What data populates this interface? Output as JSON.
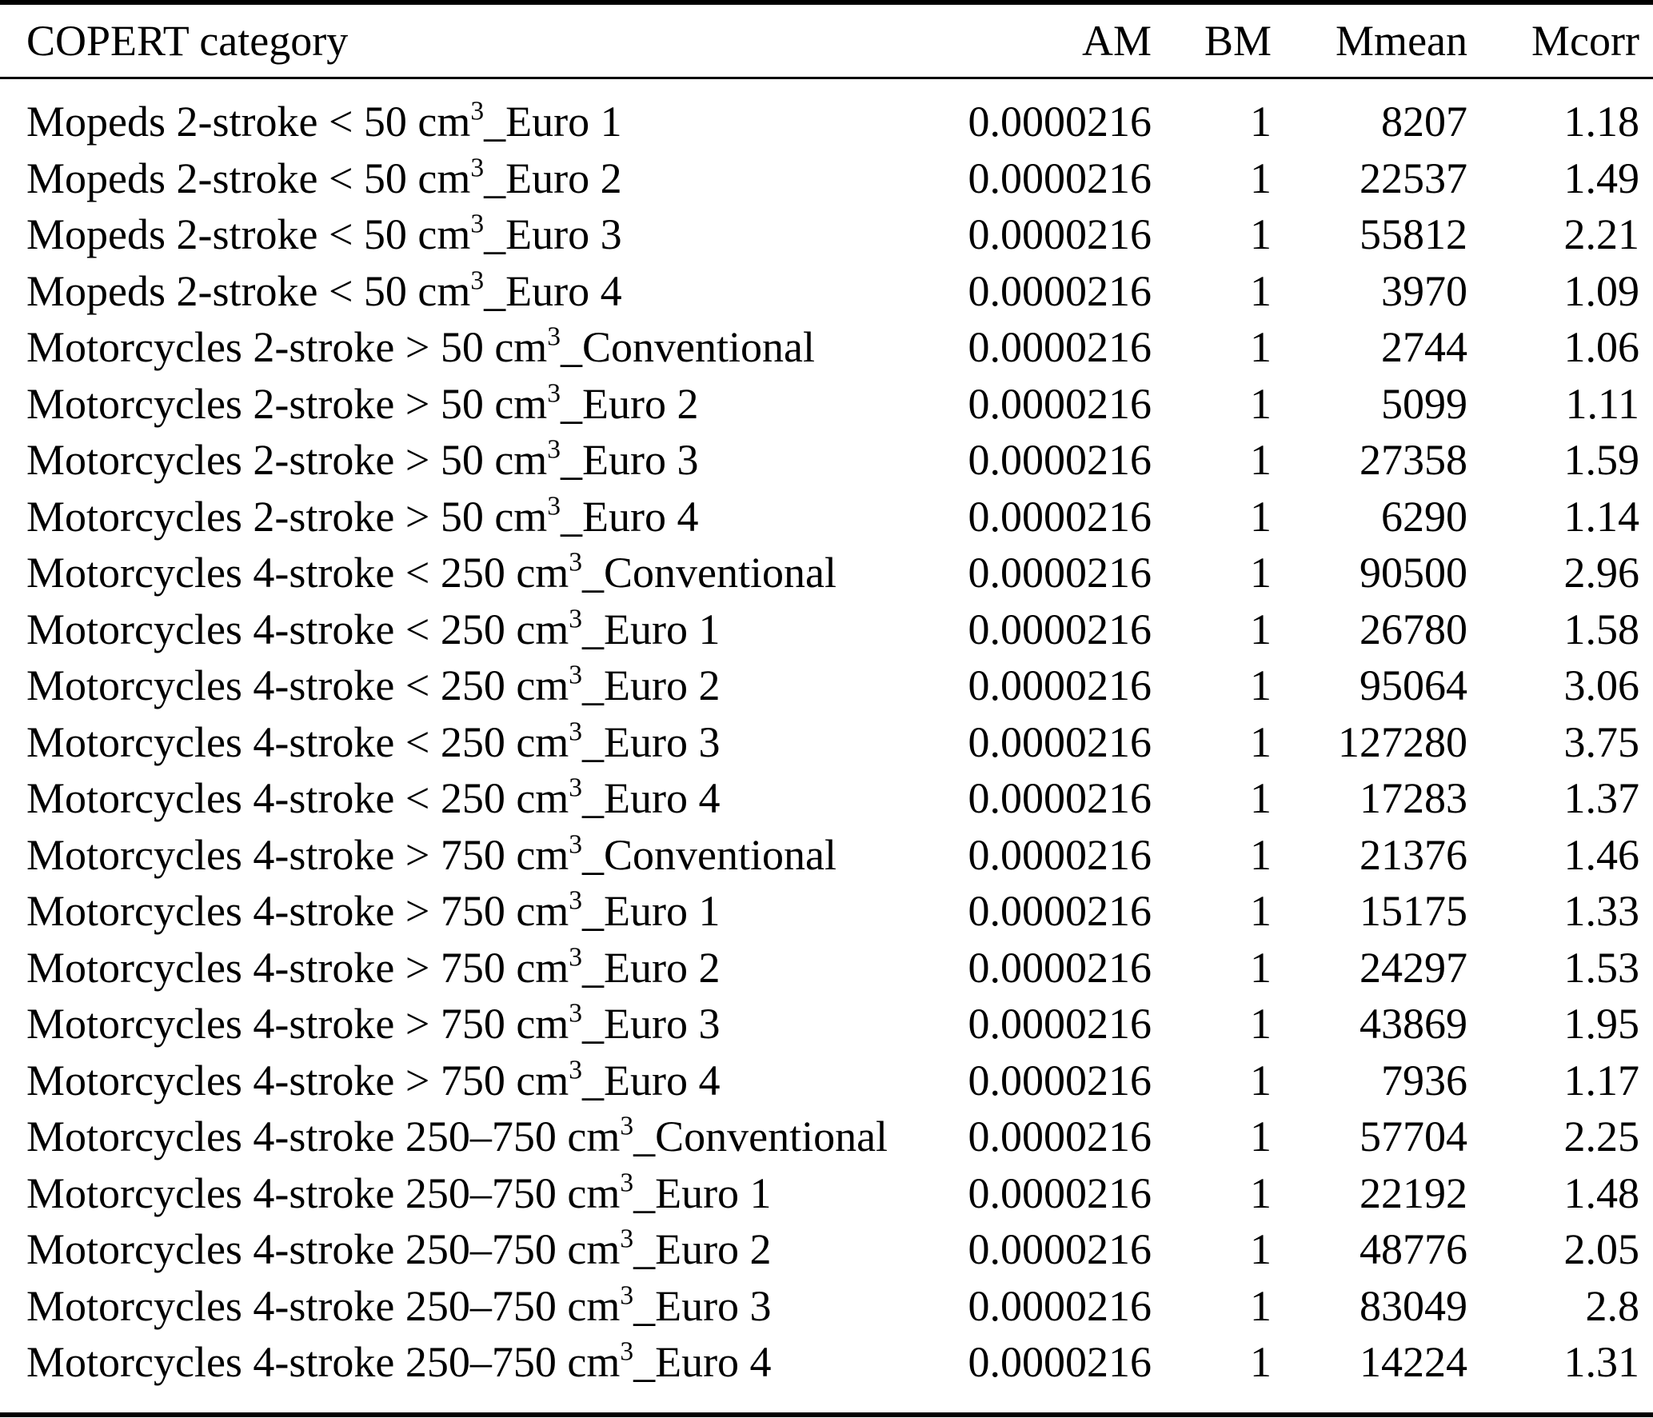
{
  "table": {
    "columns": {
      "category": "COPERT category",
      "am": "AM",
      "bm": "BM",
      "mmean": "Mmean",
      "mcorr": "Mcorr"
    },
    "rows": [
      {
        "pre": "Mopeds 2-stroke < 50 cm",
        "sup": "3",
        "post": "_Euro 1",
        "am": "0.0000216",
        "bm": "1",
        "mmean": "8207",
        "mcorr": "1.18"
      },
      {
        "pre": "Mopeds 2-stroke < 50 cm",
        "sup": "3",
        "post": "_Euro 2",
        "am": "0.0000216",
        "bm": "1",
        "mmean": "22537",
        "mcorr": "1.49"
      },
      {
        "pre": "Mopeds 2-stroke < 50 cm",
        "sup": "3",
        "post": "_Euro 3",
        "am": "0.0000216",
        "bm": "1",
        "mmean": "55812",
        "mcorr": "2.21"
      },
      {
        "pre": "Mopeds 2-stroke < 50 cm",
        "sup": "3",
        "post": "_Euro 4",
        "am": "0.0000216",
        "bm": "1",
        "mmean": "3970",
        "mcorr": "1.09"
      },
      {
        "pre": "Motorcycles 2-stroke > 50 cm",
        "sup": "3",
        "post": "_Conventional",
        "am": "0.0000216",
        "bm": "1",
        "mmean": "2744",
        "mcorr": "1.06"
      },
      {
        "pre": "Motorcycles 2-stroke > 50 cm",
        "sup": "3",
        "post": "_Euro 2",
        "am": "0.0000216",
        "bm": "1",
        "mmean": "5099",
        "mcorr": "1.11"
      },
      {
        "pre": "Motorcycles 2-stroke > 50 cm",
        "sup": "3",
        "post": "_Euro 3",
        "am": "0.0000216",
        "bm": "1",
        "mmean": "27358",
        "mcorr": "1.59"
      },
      {
        "pre": "Motorcycles 2-stroke > 50 cm",
        "sup": "3",
        "post": "_Euro 4",
        "am": "0.0000216",
        "bm": "1",
        "mmean": "6290",
        "mcorr": "1.14"
      },
      {
        "pre": "Motorcycles 4-stroke < 250 cm",
        "sup": "3",
        "post": "_Conventional",
        "am": "0.0000216",
        "bm": "1",
        "mmean": "90500",
        "mcorr": "2.96"
      },
      {
        "pre": "Motorcycles 4-stroke < 250 cm",
        "sup": "3",
        "post": "_Euro 1",
        "am": "0.0000216",
        "bm": "1",
        "mmean": "26780",
        "mcorr": "1.58"
      },
      {
        "pre": "Motorcycles 4-stroke < 250 cm",
        "sup": "3",
        "post": "_Euro 2",
        "am": "0.0000216",
        "bm": "1",
        "mmean": "95064",
        "mcorr": "3.06"
      },
      {
        "pre": "Motorcycles 4-stroke < 250 cm",
        "sup": "3",
        "post": "_Euro 3",
        "am": "0.0000216",
        "bm": "1",
        "mmean": "127280",
        "mcorr": "3.75"
      },
      {
        "pre": "Motorcycles 4-stroke < 250 cm",
        "sup": "3",
        "post": "_Euro 4",
        "am": "0.0000216",
        "bm": "1",
        "mmean": "17283",
        "mcorr": "1.37"
      },
      {
        "pre": "Motorcycles 4-stroke > 750 cm",
        "sup": "3",
        "post": "_Conventional",
        "am": "0.0000216",
        "bm": "1",
        "mmean": "21376",
        "mcorr": "1.46"
      },
      {
        "pre": "Motorcycles 4-stroke > 750 cm",
        "sup": "3",
        "post": "_Euro 1",
        "am": "0.0000216",
        "bm": "1",
        "mmean": "15175",
        "mcorr": "1.33"
      },
      {
        "pre": "Motorcycles 4-stroke > 750 cm",
        "sup": "3",
        "post": "_Euro 2",
        "am": "0.0000216",
        "bm": "1",
        "mmean": "24297",
        "mcorr": "1.53"
      },
      {
        "pre": "Motorcycles 4-stroke > 750 cm",
        "sup": "3",
        "post": "_Euro 3",
        "am": "0.0000216",
        "bm": "1",
        "mmean": "43869",
        "mcorr": "1.95"
      },
      {
        "pre": "Motorcycles 4-stroke > 750 cm",
        "sup": "3",
        "post": "_Euro 4",
        "am": "0.0000216",
        "bm": "1",
        "mmean": "7936",
        "mcorr": "1.17"
      },
      {
        "pre": "Motorcycles 4-stroke 250–750 cm",
        "sup": "3",
        "post": "_Conventional",
        "am": "0.0000216",
        "bm": "1",
        "mmean": "57704",
        "mcorr": "2.25"
      },
      {
        "pre": "Motorcycles 4-stroke 250–750 cm",
        "sup": "3",
        "post": "_Euro 1",
        "am": "0.0000216",
        "bm": "1",
        "mmean": "22192",
        "mcorr": "1.48"
      },
      {
        "pre": "Motorcycles 4-stroke 250–750 cm",
        "sup": "3",
        "post": "_Euro 2",
        "am": "0.0000216",
        "bm": "1",
        "mmean": "48776",
        "mcorr": "2.05"
      },
      {
        "pre": "Motorcycles 4-stroke 250–750 cm",
        "sup": "3",
        "post": "_Euro 3",
        "am": "0.0000216",
        "bm": "1",
        "mmean": "83049",
        "mcorr": "2.8"
      },
      {
        "pre": "Motorcycles 4-stroke 250–750 cm",
        "sup": "3",
        "post": "_Euro 4",
        "am": "0.0000216",
        "bm": "1",
        "mmean": "14224",
        "mcorr": "1.31"
      }
    ]
  }
}
